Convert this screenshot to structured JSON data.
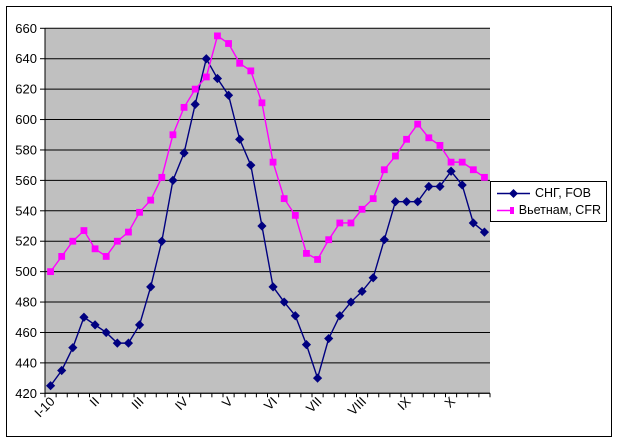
{
  "chart_data": {
    "type": "line",
    "title": "",
    "xlabel": "",
    "ylabel": "",
    "ylim": [
      420,
      660
    ],
    "ytick_step": 20,
    "y_ticks": [
      420,
      440,
      460,
      480,
      500,
      520,
      540,
      560,
      580,
      600,
      620,
      640,
      660
    ],
    "x_labels": [
      "I-10",
      "II",
      "III",
      "IV",
      "V",
      "VI",
      "VII",
      "VIII",
      "IX",
      "X"
    ],
    "x_label_every": 4,
    "n_points": 40,
    "grid": true,
    "plot_bg_color": "#C0C0C0",
    "grid_color": "#000000",
    "legend_position": "right",
    "series": [
      {
        "name": "СНГ, FOB",
        "color": "#000080",
        "marker": "diamond",
        "values": [
          425,
          435,
          450,
          470,
          465,
          460,
          453,
          453,
          465,
          490,
          520,
          560,
          578,
          610,
          640,
          627,
          616,
          587,
          570,
          530,
          490,
          480,
          471,
          452,
          430,
          456,
          471,
          480,
          487,
          496,
          521,
          546,
          546,
          546,
          556,
          556,
          566,
          557,
          532,
          526
        ]
      },
      {
        "name": "Вьетнам, CFR",
        "color": "#FF00FF",
        "marker": "square",
        "values": [
          500,
          510,
          520,
          527,
          515,
          510,
          520,
          526,
          539,
          547,
          562,
          590,
          608,
          620,
          628,
          655,
          650,
          637,
          632,
          611,
          572,
          548,
          537,
          512,
          508,
          521,
          532,
          532,
          541,
          548,
          567,
          576,
          587,
          597,
          588,
          583,
          572,
          572,
          567,
          562
        ]
      }
    ]
  }
}
